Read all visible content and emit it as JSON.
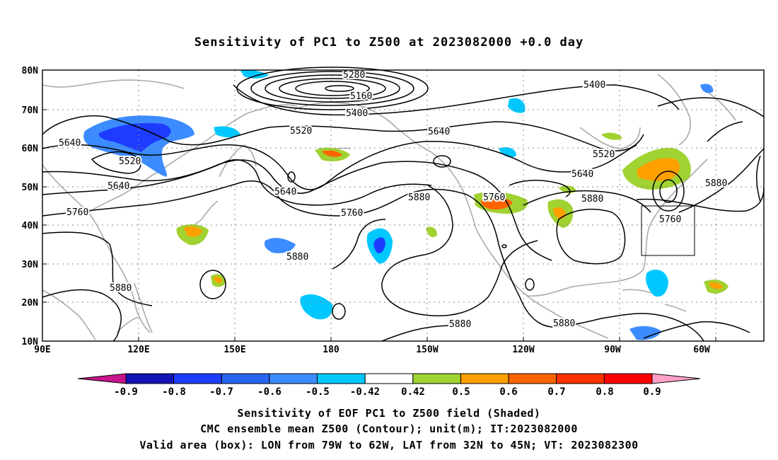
{
  "title": "Sensitivity of PC1 to Z500 at 2023082000 +0.0 day",
  "lat_labels": [
    "80N",
    "70N",
    "60N",
    "50N",
    "40N",
    "30N",
    "20N",
    "10N"
  ],
  "lon_labels": [
    "90E",
    "120E",
    "150E",
    "180",
    "150W",
    "120W",
    "90W",
    "60W"
  ],
  "contour_labels": [
    {
      "text": "5280"
    },
    {
      "text": "5160"
    },
    {
      "text": "5400"
    },
    {
      "text": "5400"
    },
    {
      "text": "5520"
    },
    {
      "text": "5640"
    },
    {
      "text": "5640"
    },
    {
      "text": "5520"
    },
    {
      "text": "5640"
    },
    {
      "text": "5640"
    },
    {
      "text": "5520"
    },
    {
      "text": "5640"
    },
    {
      "text": "5760"
    },
    {
      "text": "5760"
    },
    {
      "text": "5880"
    },
    {
      "text": "5760"
    },
    {
      "text": "5880"
    },
    {
      "text": "5880"
    },
    {
      "text": "5760"
    },
    {
      "text": "5880"
    },
    {
      "text": "5880"
    },
    {
      "text": "5880"
    },
    {
      "text": "5880"
    }
  ],
  "colorbar": {
    "labels": [
      "-0.9",
      "-0.8",
      "-0.7",
      "-0.6",
      "-0.5",
      "-0.42",
      "0.42",
      "0.5",
      "0.6",
      "0.7",
      "0.8",
      "0.9"
    ],
    "colors": [
      "#1414b4",
      "#1e3cff",
      "#2864f0",
      "#3c8cff",
      "#00c8ff",
      "#ffffff",
      "#a0d232",
      "#ffa000",
      "#ff6400",
      "#ff3200",
      "#ff0000"
    ],
    "low_color": "#c8148c",
    "high_color": "#ffa0c8"
  },
  "shading_colors": {
    "strong_neg": "#1e3cff",
    "mid_neg": "#3c8cff",
    "weak_neg": "#00c8ff",
    "weak_pos": "#a0d232",
    "mid_pos": "#ffa000",
    "strong_pos": "#ff6400"
  },
  "captions": [
    "Sensitivity of EOF PC1 to Z500 field (Shaded)",
    "CMC ensemble mean Z500 (Contour); unit(m); IT:2023082000",
    "Valid area (box): LON from 79W to 62W, LAT from 32N to 45N; VT: 2023082300"
  ]
}
